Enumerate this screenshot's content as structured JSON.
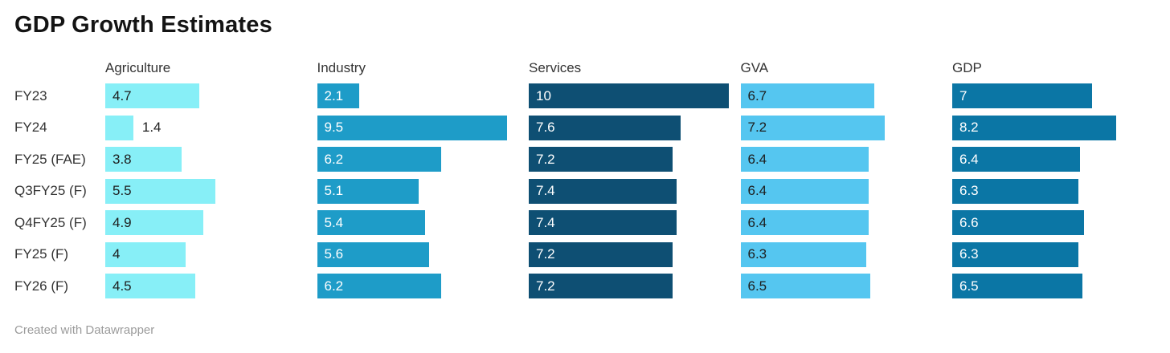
{
  "title": "GDP Growth Estimates",
  "footer": "Created with Datawrapper",
  "chart_data": {
    "type": "bar",
    "layout": "horizontal-bars-small-multiples",
    "title": "GDP Growth Estimates",
    "categories": [
      "FY23",
      "FY24",
      "FY25 (FAE)",
      "Q3FY25 (F)",
      "Q4FY25 (F)",
      "FY25 (F)",
      "FY26 (F)"
    ],
    "series": [
      {
        "name": "Agriculture",
        "color": "#87EFF7",
        "label_color": "#1d1d1d",
        "values": [
          4.7,
          1.4,
          3.8,
          5.5,
          4.9,
          4,
          4.5
        ]
      },
      {
        "name": "Industry",
        "color": "#1E9CC8",
        "label_color": "#ffffff",
        "values": [
          2.1,
          9.5,
          6.2,
          5.1,
          5.4,
          5.6,
          6.2
        ]
      },
      {
        "name": "Services",
        "color": "#0E4F73",
        "label_color": "#ffffff",
        "values": [
          10,
          7.6,
          7.2,
          7.4,
          7.4,
          7.2,
          7.2
        ]
      },
      {
        "name": "GVA",
        "color": "#55C6F0",
        "label_color": "#1d1d1d",
        "values": [
          6.7,
          7.2,
          6.4,
          6.4,
          6.4,
          6.3,
          6.5
        ]
      },
      {
        "name": "GDP",
        "color": "#0B76A5",
        "label_color": "#ffffff",
        "values": [
          7,
          8.2,
          6.4,
          6.3,
          6.6,
          6.3,
          6.5
        ]
      }
    ],
    "value_range": [
      0,
      10
    ],
    "grid": false,
    "legend": "column-headers",
    "value_labels": "inside-bar-left, outside-right-when-bar-too-short",
    "text_colors": {
      "title": "#141414",
      "labels": "#333333",
      "footer": "#9b9b9b"
    }
  }
}
